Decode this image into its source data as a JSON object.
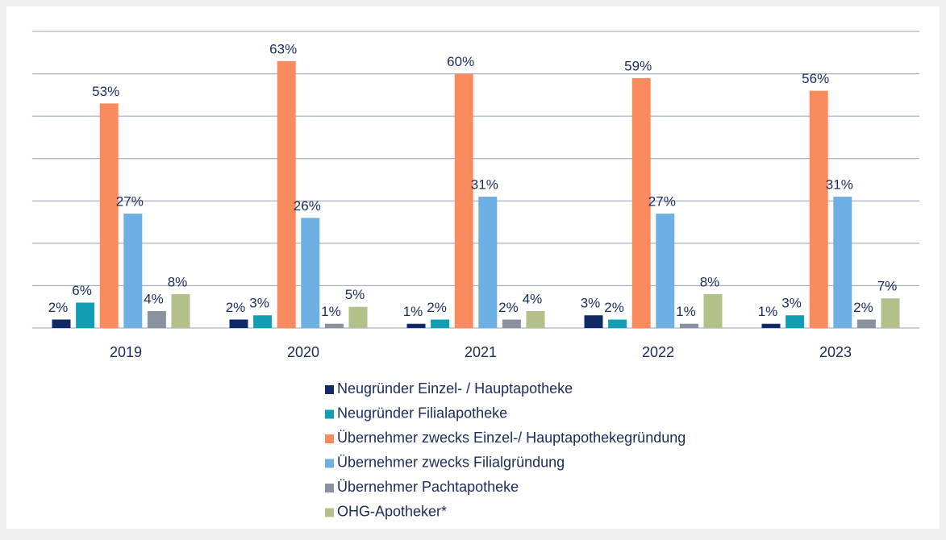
{
  "chart_data": {
    "type": "bar",
    "categories": [
      "2019",
      "2020",
      "2021",
      "2022",
      "2023"
    ],
    "series": [
      {
        "name": "Neugründer Einzel- / Hauptapotheke",
        "color": "#0f2a66",
        "values": [
          2,
          2,
          1,
          3,
          1
        ],
        "value_labels": [
          "2%",
          "2%",
          "1%",
          "3%",
          "1%"
        ]
      },
      {
        "name": "Neugründer Filialapotheke",
        "color": "#139fb3",
        "values": [
          6,
          3,
          2,
          2,
          3
        ],
        "value_labels": [
          "6%",
          "3%",
          "2%",
          "2%",
          "3%"
        ]
      },
      {
        "name": "Übernehmer zwecks Einzel-/ Hauptapothekegründung",
        "color": "#f98b5e",
        "values": [
          53,
          63,
          60,
          59,
          56
        ],
        "value_labels": [
          "53%",
          "63%",
          "60%",
          "59%",
          "56%"
        ]
      },
      {
        "name": "Übernehmer zwecks Filialgründung",
        "color": "#6eb0e3",
        "values": [
          27,
          26,
          31,
          27,
          31
        ],
        "value_labels": [
          "27%",
          "26%",
          "31%",
          "27%",
          "31%"
        ]
      },
      {
        "name": "Übernehmer Pachtapotheke",
        "color": "#8a919e",
        "values": [
          4,
          1,
          2,
          1,
          2
        ],
        "value_labels": [
          "4%",
          "1%",
          "2%",
          "1%",
          "2%"
        ]
      },
      {
        "name": "OHG-Apotheker*",
        "color": "#b4c08a",
        "values": [
          8,
          5,
          4,
          8,
          7
        ],
        "value_labels": [
          "8%",
          "5%",
          "4%",
          "8%",
          "7%"
        ]
      }
    ],
    "ylim": [
      0,
      70
    ],
    "yticks": [
      0,
      10,
      20,
      30,
      40,
      50,
      60,
      70
    ],
    "grid": true
  }
}
